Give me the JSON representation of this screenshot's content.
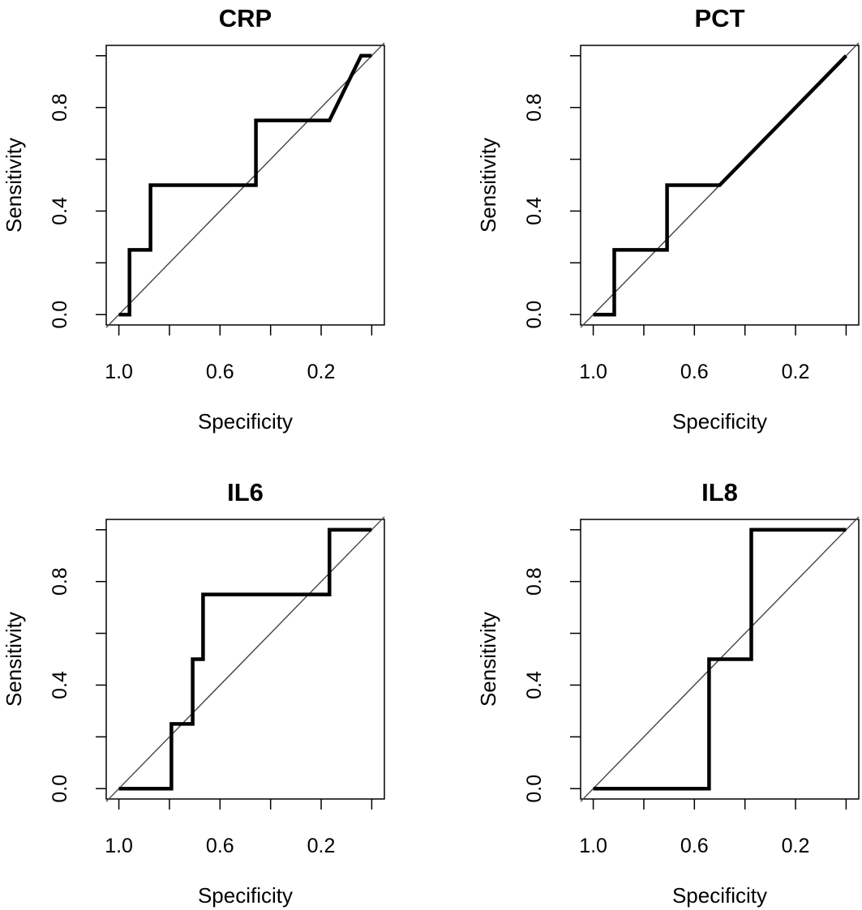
{
  "colors": {
    "curve": "#000000",
    "reference": "#444444",
    "frame": "#000000",
    "background": "#ffffff"
  },
  "chart_data": [
    {
      "type": "line",
      "title": "CRP",
      "xlabel": "Specificity",
      "ylabel": "Sensitivity",
      "xlim": [
        1.05,
        -0.05
      ],
      "ylim": [
        -0.04,
        1.04
      ],
      "x_reversed": true,
      "x_ticks": [
        1.0,
        0.8,
        0.6,
        0.4,
        0.2,
        0.0
      ],
      "x_tick_labels": [
        "1.0",
        "",
        "0.6",
        "",
        "0.2",
        ""
      ],
      "y_ticks": [
        0.0,
        0.2,
        0.4,
        0.6,
        0.8,
        1.0
      ],
      "y_tick_labels": [
        "0.0",
        "",
        "0.4",
        "",
        "0.8",
        ""
      ],
      "reference_line": "diagonal",
      "grid": false,
      "series": [
        {
          "x": [
            1.0,
            0.958,
            0.958,
            0.875,
            0.875,
            0.458,
            0.458,
            0.167,
            0.042,
            0.0
          ],
          "y": [
            0.0,
            0.0,
            0.25,
            0.25,
            0.5,
            0.5,
            0.75,
            0.75,
            1.0,
            1.0
          ]
        }
      ]
    },
    {
      "type": "line",
      "title": "PCT",
      "xlabel": "Specificity",
      "ylabel": "Sensitivity",
      "xlim": [
        1.05,
        -0.05
      ],
      "ylim": [
        -0.04,
        1.04
      ],
      "x_reversed": true,
      "x_ticks": [
        1.0,
        0.8,
        0.6,
        0.4,
        0.2,
        0.0
      ],
      "x_tick_labels": [
        "1.0",
        "",
        "0.6",
        "",
        "0.2",
        ""
      ],
      "y_ticks": [
        0.0,
        0.2,
        0.4,
        0.6,
        0.8,
        1.0
      ],
      "y_tick_labels": [
        "0.0",
        "",
        "0.4",
        "",
        "0.8",
        ""
      ],
      "reference_line": "diagonal",
      "grid": false,
      "series": [
        {
          "x": [
            1.0,
            0.917,
            0.917,
            0.708,
            0.708,
            0.5,
            0.0
          ],
          "y": [
            0.0,
            0.0,
            0.25,
            0.25,
            0.5,
            0.5,
            1.0
          ]
        }
      ]
    },
    {
      "type": "line",
      "title": "IL6",
      "xlabel": "Specificity",
      "ylabel": "Sensitivity",
      "xlim": [
        1.05,
        -0.05
      ],
      "ylim": [
        -0.04,
        1.04
      ],
      "x_reversed": true,
      "x_ticks": [
        1.0,
        0.8,
        0.6,
        0.4,
        0.2,
        0.0
      ],
      "x_tick_labels": [
        "1.0",
        "",
        "0.6",
        "",
        "0.2",
        ""
      ],
      "y_ticks": [
        0.0,
        0.2,
        0.4,
        0.6,
        0.8,
        1.0
      ],
      "y_tick_labels": [
        "0.0",
        "",
        "0.4",
        "",
        "0.8",
        ""
      ],
      "reference_line": "diagonal",
      "grid": false,
      "series": [
        {
          "x": [
            1.0,
            0.792,
            0.792,
            0.708,
            0.708,
            0.667,
            0.667,
            0.167,
            0.167,
            0.0
          ],
          "y": [
            0.0,
            0.0,
            0.25,
            0.25,
            0.5,
            0.5,
            0.75,
            0.75,
            1.0,
            1.0
          ]
        }
      ]
    },
    {
      "type": "line",
      "title": "IL8",
      "xlabel": "Specificity",
      "ylabel": "Sensitivity",
      "xlim": [
        1.05,
        -0.05
      ],
      "ylim": [
        -0.04,
        1.04
      ],
      "x_reversed": true,
      "x_ticks": [
        1.0,
        0.8,
        0.6,
        0.4,
        0.2,
        0.0
      ],
      "x_tick_labels": [
        "1.0",
        "",
        "0.6",
        "",
        "0.2",
        ""
      ],
      "y_ticks": [
        0.0,
        0.2,
        0.4,
        0.6,
        0.8,
        1.0
      ],
      "y_tick_labels": [
        "0.0",
        "",
        "0.4",
        "",
        "0.8",
        ""
      ],
      "reference_line": "diagonal",
      "grid": false,
      "series": [
        {
          "x": [
            1.0,
            0.542,
            0.542,
            0.375,
            0.375,
            0.0
          ],
          "y": [
            0.0,
            0.0,
            0.5,
            0.5,
            1.0,
            1.0
          ]
        }
      ]
    }
  ]
}
